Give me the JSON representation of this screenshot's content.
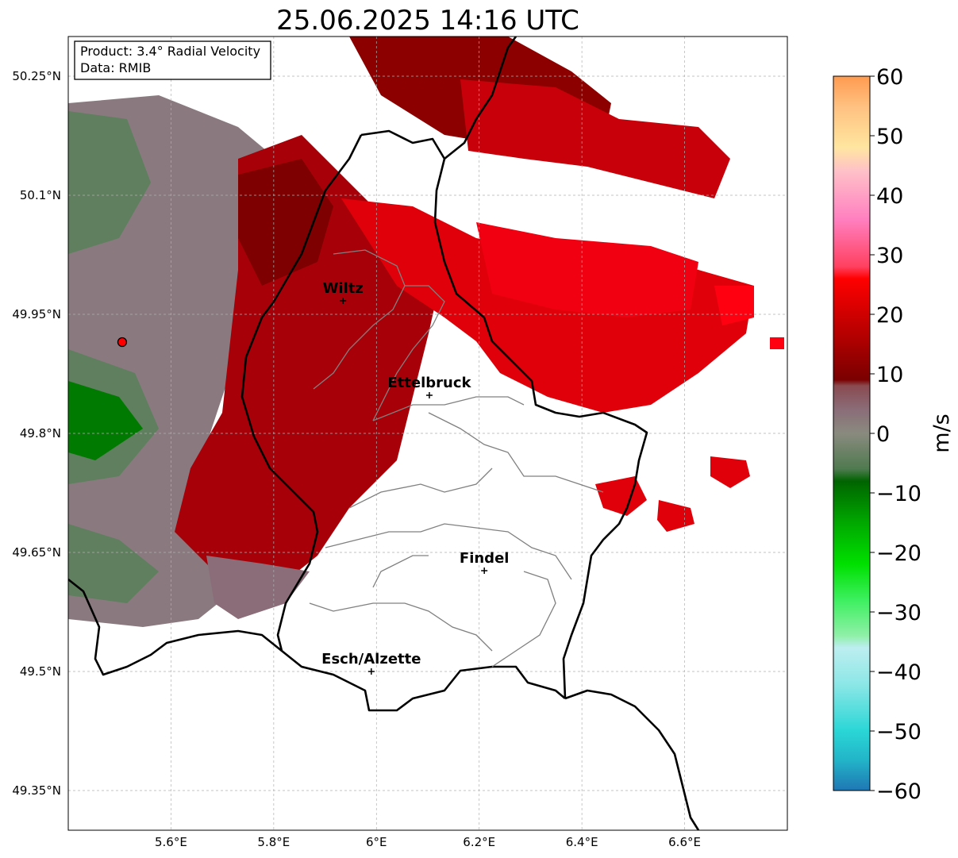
{
  "title": "25.06.2025 14:16 UTC",
  "info_box": {
    "product": "Product: 3.4° Radial Velocity",
    "source": "Data: RMIB"
  },
  "map": {
    "lon_range": [
      5.4,
      6.8
    ],
    "lat_range": [
      49.3,
      50.3
    ],
    "lat_ticks": [
      {
        "value": 50.25,
        "label": "50.25°N"
      },
      {
        "value": 50.1,
        "label": "50.1°N"
      },
      {
        "value": 49.95,
        "label": "49.95°N"
      },
      {
        "value": 49.8,
        "label": "49.8°N"
      },
      {
        "value": 49.65,
        "label": "49.65°N"
      },
      {
        "value": 49.5,
        "label": "49.5°N"
      },
      {
        "value": 49.35,
        "label": "49.35°N"
      }
    ],
    "lon_ticks": [
      {
        "value": 5.6,
        "label": "5.6°E"
      },
      {
        "value": 5.8,
        "label": "5.8°E"
      },
      {
        "value": 6.0,
        "label": "6°E"
      },
      {
        "value": 6.2,
        "label": "6.2°E"
      },
      {
        "value": 6.4,
        "label": "6.4°E"
      },
      {
        "value": 6.6,
        "label": "6.6°E"
      }
    ],
    "gridlines": true,
    "radar_site": {
      "lon": 5.505,
      "lat": 49.915,
      "color": "#ff0000"
    },
    "cities": [
      {
        "name": "Wiltz",
        "lon": 5.935,
        "lat": 49.967
      },
      {
        "name": "Ettelbruck",
        "lon": 6.103,
        "lat": 49.848
      },
      {
        "name": "Findel",
        "lon": 6.21,
        "lat": 49.627
      },
      {
        "name": "Esch/Alzette",
        "lon": 5.99,
        "lat": 49.5
      }
    ]
  },
  "colorbar": {
    "label": "m/s",
    "min": -60,
    "max": 60,
    "ticks": [
      {
        "value": 60,
        "label": "60"
      },
      {
        "value": 50,
        "label": "50"
      },
      {
        "value": 40,
        "label": "40"
      },
      {
        "value": 30,
        "label": "30"
      },
      {
        "value": 20,
        "label": "20"
      },
      {
        "value": 10,
        "label": "10"
      },
      {
        "value": 0,
        "label": "0"
      },
      {
        "value": -10,
        "label": "−10"
      },
      {
        "value": -20,
        "label": "−20"
      },
      {
        "value": -30,
        "label": "−30"
      },
      {
        "value": -40,
        "label": "−40"
      },
      {
        "value": -50,
        "label": "−50"
      },
      {
        "value": -60,
        "label": "−60"
      }
    ],
    "stops": [
      {
        "value": -60,
        "color": "#1f77b4"
      },
      {
        "value": -55,
        "color": "#22b3c8"
      },
      {
        "value": -50,
        "color": "#2ad6d6"
      },
      {
        "value": -42,
        "color": "#8ee7e7"
      },
      {
        "value": -36,
        "color": "#bdeef0"
      },
      {
        "value": -34,
        "color": "#8ff0a8"
      },
      {
        "value": -28,
        "color": "#3df060"
      },
      {
        "value": -22,
        "color": "#00e000"
      },
      {
        "value": -15,
        "color": "#00a800"
      },
      {
        "value": -8,
        "color": "#006400"
      },
      {
        "value": -6,
        "color": "#4f7a4f"
      },
      {
        "value": 0,
        "color": "#8a8a7f"
      },
      {
        "value": 4,
        "color": "#8a6d78"
      },
      {
        "value": 8,
        "color": "#8a4a50"
      },
      {
        "value": 9,
        "color": "#7a0000"
      },
      {
        "value": 18,
        "color": "#c00000"
      },
      {
        "value": 26,
        "color": "#ff0000"
      },
      {
        "value": 28,
        "color": "#ff4060"
      },
      {
        "value": 36,
        "color": "#ff80c0"
      },
      {
        "value": 44,
        "color": "#ffc0c8"
      },
      {
        "value": 48,
        "color": "#ffe6a0"
      },
      {
        "value": 55,
        "color": "#ffc080"
      },
      {
        "value": 60,
        "color": "#ff9a50"
      }
    ]
  }
}
